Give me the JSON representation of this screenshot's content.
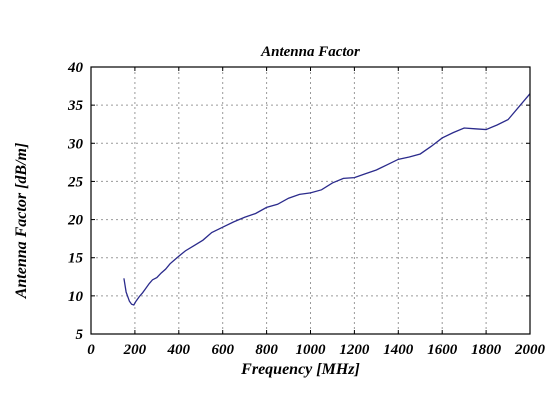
{
  "chart_data": {
    "type": "line",
    "title": "Antenna Factor",
    "xlabel": "Frequency [MHz]",
    "ylabel": "Antenna Factor [dB/m]",
    "xlim": [
      0,
      2000
    ],
    "ylim": [
      5,
      40
    ],
    "x_ticks": [
      "0",
      "200",
      "400",
      "600",
      "800",
      "1000",
      "1200",
      "1400",
      "1600",
      "1800",
      "2000"
    ],
    "y_ticks": [
      "5",
      "10",
      "15",
      "20",
      "25",
      "30",
      "35",
      "40"
    ],
    "grid": true,
    "series": [
      {
        "color": "#2b2b8c",
        "points": [
          [
            150,
            12.3
          ],
          [
            160,
            10.5
          ],
          [
            175,
            9.3
          ],
          [
            185,
            8.9
          ],
          [
            195,
            8.8
          ],
          [
            205,
            9.3
          ],
          [
            220,
            9.9
          ],
          [
            235,
            10.4
          ],
          [
            250,
            11.0
          ],
          [
            265,
            11.6
          ],
          [
            280,
            12.1
          ],
          [
            300,
            12.4
          ],
          [
            320,
            13.0
          ],
          [
            340,
            13.5
          ],
          [
            360,
            14.2
          ],
          [
            380,
            14.7
          ],
          [
            400,
            15.2
          ],
          [
            430,
            15.9
          ],
          [
            470,
            16.6
          ],
          [
            510,
            17.3
          ],
          [
            550,
            18.3
          ],
          [
            600,
            19.0
          ],
          [
            650,
            19.7
          ],
          [
            700,
            20.3
          ],
          [
            750,
            20.8
          ],
          [
            800,
            21.6
          ],
          [
            850,
            22.0
          ],
          [
            900,
            22.8
          ],
          [
            950,
            23.3
          ],
          [
            1000,
            23.5
          ],
          [
            1050,
            23.9
          ],
          [
            1100,
            24.8
          ],
          [
            1150,
            25.4
          ],
          [
            1200,
            25.5
          ],
          [
            1250,
            26.0
          ],
          [
            1300,
            26.5
          ],
          [
            1350,
            27.2
          ],
          [
            1400,
            27.9
          ],
          [
            1450,
            28.2
          ],
          [
            1500,
            28.6
          ],
          [
            1550,
            29.6
          ],
          [
            1600,
            30.7
          ],
          [
            1650,
            31.4
          ],
          [
            1700,
            32.0
          ],
          [
            1750,
            31.9
          ],
          [
            1800,
            31.8
          ],
          [
            1850,
            32.4
          ],
          [
            1900,
            33.1
          ],
          [
            1950,
            34.8
          ],
          [
            2000,
            36.5
          ]
        ]
      }
    ]
  }
}
